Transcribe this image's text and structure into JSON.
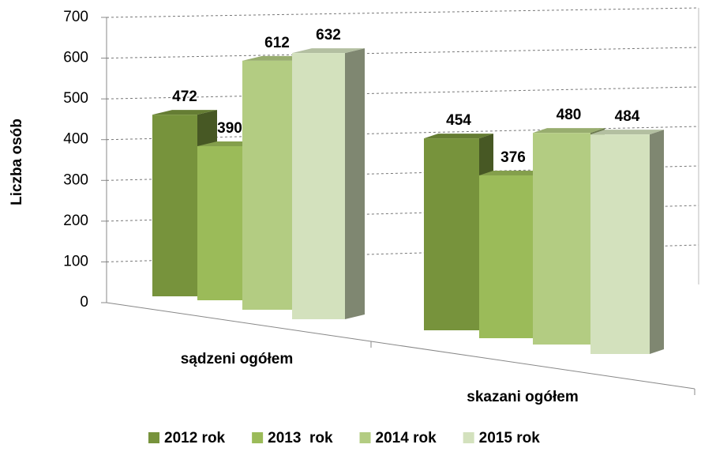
{
  "chart_data": {
    "type": "bar3d",
    "y_label": "Liczba osób",
    "categories": [
      "sądzeni ogółem",
      "skazani ogółem"
    ],
    "series": [
      {
        "name": "2012 rok",
        "color": "#77933c",
        "values": [
          472,
          454
        ]
      },
      {
        "name": "2013  rok",
        "color": "#9bbb59",
        "values": [
          390,
          376
        ]
      },
      {
        "name": "2014 rok",
        "color": "#b3cc82",
        "values": [
          612,
          480
        ]
      },
      {
        "name": "2015 rok",
        "color": "#d3e1bd",
        "values": [
          632,
          484
        ]
      }
    ],
    "ylim": [
      0,
      700
    ],
    "yticks": [
      0,
      100,
      200,
      300,
      400,
      500,
      600,
      700
    ],
    "grid": true,
    "legend": "bottom"
  }
}
